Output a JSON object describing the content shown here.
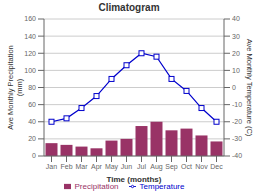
{
  "chart_data": {
    "type": "bar",
    "title": "Climatogram",
    "xlabel": "Time (months)",
    "ylabel": "Ave Monthly Precipitation\n(mm)",
    "y2label": "Ave Monthly Temperature (C)",
    "categories": [
      "Jan",
      "Feb",
      "Mar",
      "Apr",
      "May",
      "Jun",
      "Jul",
      "Aug",
      "Sep",
      "Oct",
      "Nov",
      "Dec"
    ],
    "series": [
      {
        "name": "Precipitation",
        "type": "bar",
        "color": "#993366",
        "values": [
          15,
          13,
          11,
          9,
          18,
          20,
          35,
          40,
          30,
          32,
          24,
          17
        ]
      },
      {
        "name": "Temperature",
        "type": "line",
        "axis": "y2",
        "color": "#0000cc",
        "marker": "square",
        "values": [
          -20,
          -18,
          -12,
          -5,
          5,
          13,
          20,
          18,
          5,
          -2,
          -12,
          -20
        ]
      }
    ],
    "ylim": [
      0,
      160
    ],
    "yticks": [
      0,
      20,
      40,
      60,
      80,
      100,
      120,
      140,
      160
    ],
    "y2lim": [
      -40,
      40
    ],
    "y2ticks": [
      -40,
      -30,
      -20,
      -10,
      0,
      10,
      20,
      30,
      40
    ],
    "grid": true,
    "legend": "bottom"
  }
}
